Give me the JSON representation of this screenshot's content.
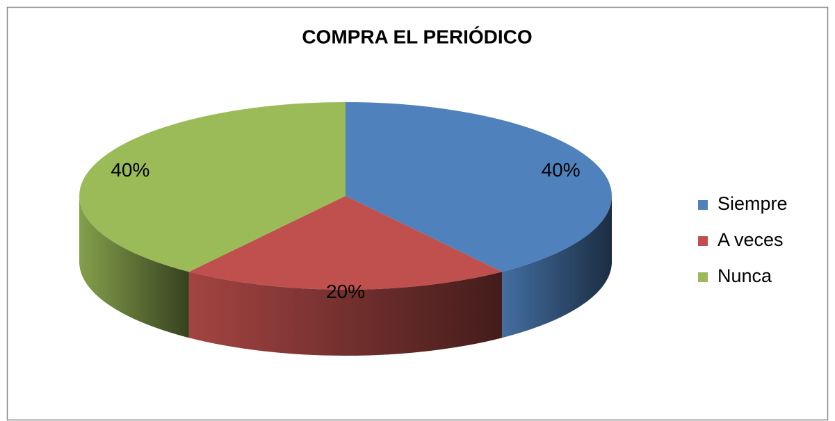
{
  "chart_data": {
    "type": "pie",
    "title": "COMPRA EL PERIÓDICO",
    "categories": [
      "Siempre",
      "A veces",
      "Nunca"
    ],
    "values": [
      40,
      20,
      40
    ],
    "value_labels": [
      "40%",
      "20%",
      "40%"
    ],
    "colors": [
      "#4f81bd",
      "#c0504d",
      "#9bbb59"
    ],
    "legend": "right"
  }
}
